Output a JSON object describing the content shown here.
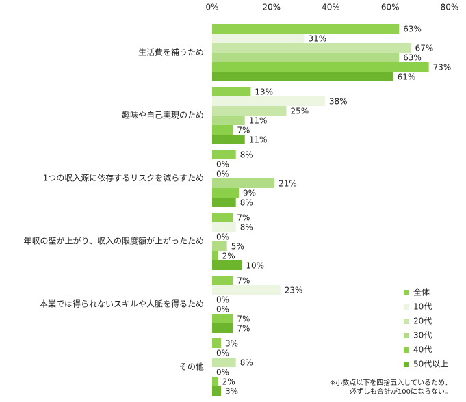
{
  "chart_data": {
    "type": "hbar",
    "categories": [
      "生活費を補うため",
      "趣味や自己実現のため",
      "1つの収入源に依存するリスクを減らすため",
      "年収の壁が上がり、収入の限度額が上がったため",
      "本業では得られないスキルや人脈を得るため",
      "その他"
    ],
    "series": [
      {
        "name": "全体",
        "color": "#92d050",
        "values": [
          63,
          13,
          8,
          7,
          7,
          3
        ],
        "value_labels": [
          "63%",
          "13%",
          "8%",
          "7%",
          "7%",
          "3%"
        ]
      },
      {
        "name": "10代",
        "color": "#ebf5df",
        "values": [
          31,
          38,
          0,
          8,
          23,
          0
        ],
        "value_labels": [
          "31%",
          "38%",
          "0%",
          "8%",
          "23%",
          "0%"
        ]
      },
      {
        "name": "20代",
        "color": "#c8e6a8",
        "values": [
          67,
          25,
          0,
          0,
          0,
          8
        ],
        "value_labels": [
          "67%",
          "25%",
          "0%",
          "0%",
          "0%",
          "8%"
        ]
      },
      {
        "name": "30代",
        "color": "#b0dc85",
        "values": [
          63,
          11,
          21,
          5,
          0,
          0
        ],
        "value_labels": [
          "63%",
          "11%",
          "21%",
          "5%",
          "0%",
          "0%"
        ]
      },
      {
        "name": "40代",
        "color": "#8ccf48",
        "values": [
          73,
          7,
          9,
          2,
          7,
          2
        ],
        "value_labels": [
          "73%",
          "7%",
          "9%",
          "2%",
          "7%",
          "2%"
        ]
      },
      {
        "name": "50代以上",
        "color": "#6cb52c",
        "values": [
          61,
          11,
          8,
          10,
          7,
          3
        ],
        "value_labels": [
          "61%",
          "11%",
          "8%",
          "10%",
          "7%",
          "3%"
        ]
      }
    ],
    "xlim": [
      0,
      80
    ],
    "xticks": [
      {
        "value": 0,
        "label": "0%"
      },
      {
        "value": 20,
        "label": "20%"
      },
      {
        "value": 40,
        "label": "40%"
      },
      {
        "value": 60,
        "label": "60%"
      },
      {
        "value": 80,
        "label": "80%"
      }
    ],
    "grid": false,
    "legend": "bottom-right",
    "note": [
      "※小数点以下を四捨五入しているため、",
      "必ずしも合計が100にならない。"
    ]
  }
}
